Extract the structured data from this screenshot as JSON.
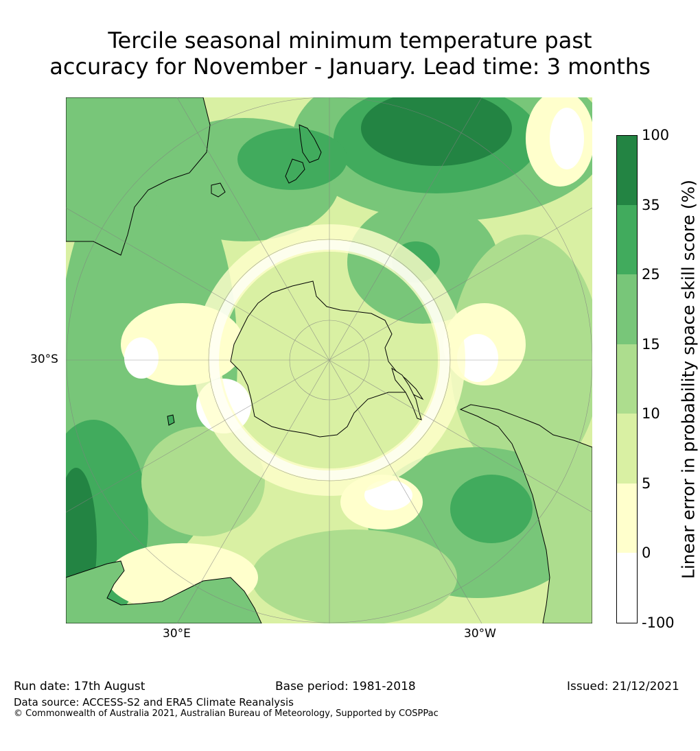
{
  "title_line1": "Tercile seasonal minimum temperature past",
  "title_line2": "accuracy for November - January. Lead time: 3 months",
  "map": {
    "projection": "south polar stereographic",
    "labels": {
      "lat_30s": "30°S",
      "lon_30e": "30°E",
      "lon_30w": "30°W"
    }
  },
  "colorbar": {
    "label": "Linear error in probability space skill score (%)",
    "ticks": [
      "100",
      "35",
      "25",
      "15",
      "10",
      "5",
      "0",
      "-100"
    ],
    "colors": [
      "#238443",
      "#41ab5d",
      "#78c679",
      "#addd8e",
      "#d9f0a3",
      "#ffffcc",
      "#ffffff"
    ]
  },
  "footer": {
    "run_date": "Run date: 17th August",
    "base_period": "Base period: 1981-2018",
    "issued": "Issued: 21/12/2021",
    "data_source": "Data source: ACCESS-S2 and ERA5 Climate Reanalysis",
    "copyright": "© Commonwealth of Australia 2021, Australian Bureau of Meteorology, Supported by COSPPac"
  }
}
